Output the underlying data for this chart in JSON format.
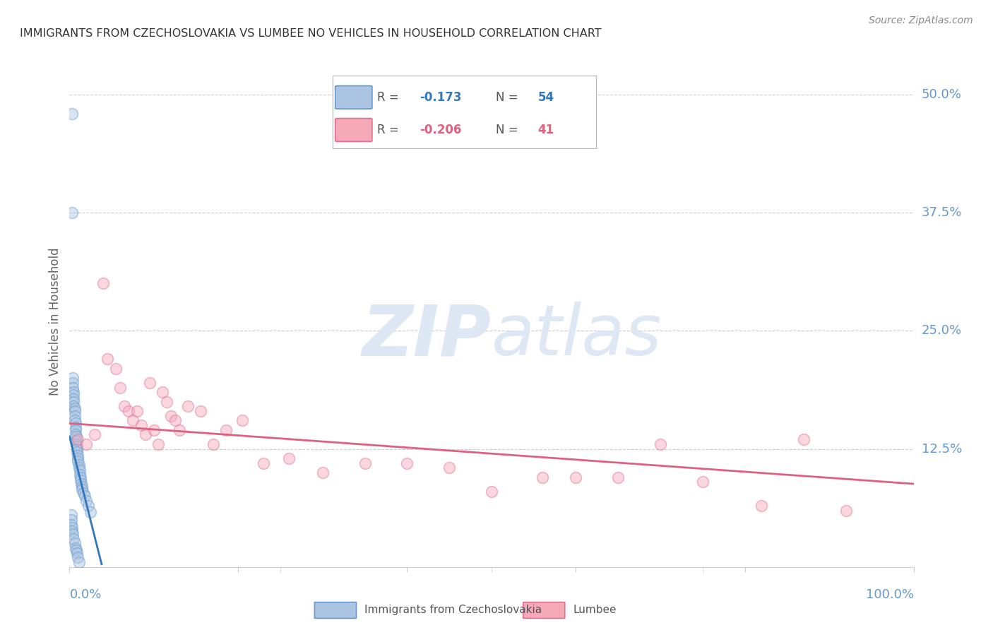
{
  "title": "IMMIGRANTS FROM CZECHOSLOVAKIA VS LUMBEE NO VEHICLES IN HOUSEHOLD CORRELATION CHART",
  "source": "Source: ZipAtlas.com",
  "ylabel": "No Vehicles in Household",
  "xlim": [
    0.0,
    1.0
  ],
  "ylim": [
    0.0,
    0.52
  ],
  "yticks": [
    0.0,
    0.125,
    0.25,
    0.375,
    0.5
  ],
  "ytick_labels": [
    "",
    "12.5%",
    "25.0%",
    "37.5%",
    "50.0%"
  ],
  "legend_entries": [
    {
      "label": "Immigrants from Czechoslovakia",
      "R": "-0.173",
      "N": "54",
      "color": "#aac4e2",
      "edge": "#6699cc"
    },
    {
      "label": "Lumbee",
      "R": "-0.206",
      "N": "41",
      "color": "#f4a8b8",
      "edge": "#e07090"
    }
  ],
  "blue_scatter_x": [
    0.003,
    0.003,
    0.004,
    0.004,
    0.004,
    0.005,
    0.005,
    0.005,
    0.005,
    0.005,
    0.006,
    0.006,
    0.006,
    0.006,
    0.007,
    0.007,
    0.007,
    0.007,
    0.008,
    0.008,
    0.008,
    0.009,
    0.009,
    0.009,
    0.01,
    0.01,
    0.01,
    0.011,
    0.011,
    0.012,
    0.012,
    0.013,
    0.013,
    0.014,
    0.015,
    0.015,
    0.016,
    0.018,
    0.02,
    0.022,
    0.025,
    0.002,
    0.002,
    0.002,
    0.003,
    0.003,
    0.004,
    0.005,
    0.006,
    0.007,
    0.008,
    0.009,
    0.01,
    0.011
  ],
  "blue_scatter_y": [
    0.48,
    0.375,
    0.2,
    0.195,
    0.19,
    0.185,
    0.182,
    0.178,
    0.175,
    0.17,
    0.168,
    0.165,
    0.16,
    0.155,
    0.152,
    0.148,
    0.145,
    0.14,
    0.138,
    0.134,
    0.13,
    0.128,
    0.125,
    0.122,
    0.118,
    0.115,
    0.112,
    0.108,
    0.105,
    0.102,
    0.098,
    0.095,
    0.092,
    0.088,
    0.085,
    0.082,
    0.078,
    0.075,
    0.07,
    0.065,
    0.058,
    0.055,
    0.05,
    0.045,
    0.042,
    0.038,
    0.035,
    0.03,
    0.025,
    0.02,
    0.018,
    0.015,
    0.01,
    0.005
  ],
  "pink_scatter_x": [
    0.01,
    0.02,
    0.03,
    0.04,
    0.045,
    0.055,
    0.06,
    0.065,
    0.07,
    0.075,
    0.08,
    0.085,
    0.09,
    0.095,
    0.1,
    0.105,
    0.11,
    0.115,
    0.12,
    0.125,
    0.13,
    0.14,
    0.155,
    0.17,
    0.185,
    0.205,
    0.23,
    0.26,
    0.3,
    0.35,
    0.4,
    0.45,
    0.5,
    0.56,
    0.6,
    0.65,
    0.7,
    0.75,
    0.82,
    0.87,
    0.92
  ],
  "pink_scatter_y": [
    0.135,
    0.13,
    0.14,
    0.3,
    0.22,
    0.21,
    0.19,
    0.17,
    0.165,
    0.155,
    0.165,
    0.15,
    0.14,
    0.195,
    0.145,
    0.13,
    0.185,
    0.175,
    0.16,
    0.155,
    0.145,
    0.17,
    0.165,
    0.13,
    0.145,
    0.155,
    0.11,
    0.115,
    0.1,
    0.11,
    0.11,
    0.105,
    0.08,
    0.095,
    0.095,
    0.095,
    0.13,
    0.09,
    0.065,
    0.135,
    0.06
  ],
  "blue_line_x": [
    0.0,
    0.038
  ],
  "blue_line_y": [
    0.138,
    0.003
  ],
  "pink_line_x": [
    0.0,
    1.0
  ],
  "pink_line_y": [
    0.152,
    0.088
  ],
  "scatter_size": 130,
  "scatter_alpha": 0.45,
  "scatter_linewidth": 1.2,
  "background_color": "#ffffff",
  "grid_color": "#cccccc",
  "title_color": "#333333",
  "axis_label_color": "#666666",
  "tick_label_color": "#6699cc",
  "watermark_zip": "ZIP",
  "watermark_atlas": "atlas",
  "watermark_color_zip": "#dde8f4",
  "watermark_color_atlas": "#dde8f4",
  "watermark_fontsize": 72
}
